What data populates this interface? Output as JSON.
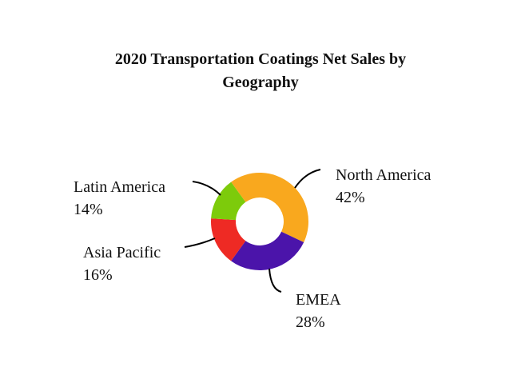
{
  "title": {
    "line1": "2020 Transportation Coatings Net Sales by",
    "line2": "Geography"
  },
  "chart_data": {
    "type": "pie",
    "variant": "donut",
    "title": "2020 Transportation Coatings Net Sales by Geography",
    "categories": [
      "North America",
      "EMEA",
      "Asia Pacific",
      "Latin America"
    ],
    "values": [
      42,
      28,
      16,
      14
    ],
    "unit": "%",
    "colors": [
      "#F9A81E",
      "#4B14AA",
      "#EE2A24",
      "#7DCB0B"
    ],
    "legend": "none (data labels with leader lines)",
    "start_angle_deg": -36,
    "direction": "clockwise"
  },
  "labels": [
    {
      "name": "North America",
      "value": "42%"
    },
    {
      "name": "EMEA",
      "value": "28%"
    },
    {
      "name": "Asia Pacific",
      "value": "16%"
    },
    {
      "name": "Latin America",
      "value": "14%"
    }
  ]
}
